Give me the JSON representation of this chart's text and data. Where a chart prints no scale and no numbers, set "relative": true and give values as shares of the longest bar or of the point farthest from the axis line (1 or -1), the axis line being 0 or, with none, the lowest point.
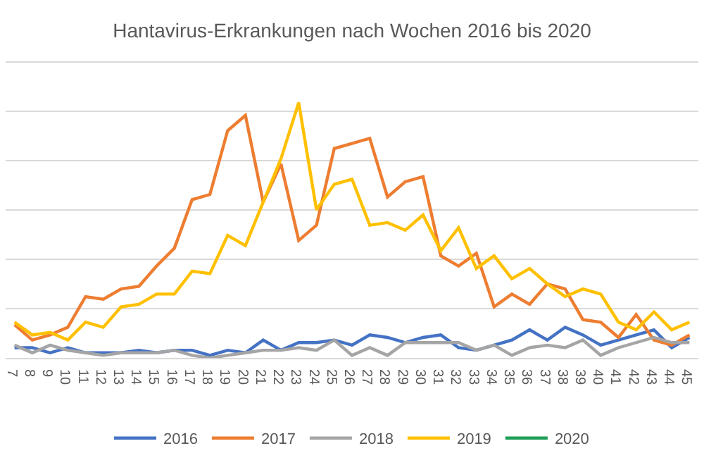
{
  "chart_data": {
    "type": "line",
    "title": "Hantavirus-Erkrankungen nach Wochen 2016 bis 2020",
    "relative": true,
    "grid": "y",
    "legend": "bottom",
    "marker": "none",
    "line_style": "solid",
    "categories": [
      "7",
      "8",
      "9",
      "10",
      "11",
      "12",
      "13",
      "14",
      "15",
      "16",
      "17",
      "18",
      "19",
      "20",
      "21",
      "22",
      "23",
      "24",
      "25",
      "26",
      "27",
      "28",
      "29",
      "30",
      "31",
      "32",
      "33",
      "34",
      "35",
      "36",
      "37",
      "38",
      "39",
      "40",
      "41",
      "42",
      "43",
      "44",
      "45"
    ],
    "series": [
      {
        "name": "2016",
        "color": "#4472c4",
        "values": [
          0.04,
          0.04,
          0.02,
          0.04,
          0.02,
          0.02,
          0.02,
          0.03,
          0.02,
          0.03,
          0.03,
          0.01,
          0.03,
          0.02,
          0.07,
          0.03,
          0.06,
          0.06,
          0.07,
          0.05,
          0.09,
          0.08,
          0.06,
          0.08,
          0.09,
          0.04,
          0.03,
          0.05,
          0.07,
          0.11,
          0.07,
          0.12,
          0.09,
          0.05,
          0.07,
          0.09,
          0.11,
          0.04,
          0.08
        ]
      },
      {
        "name": "2017",
        "color": "#ed7d31",
        "values": [
          0.13,
          0.07,
          0.09,
          0.12,
          0.24,
          0.23,
          0.27,
          0.28,
          0.36,
          0.43,
          0.62,
          0.64,
          0.89,
          0.95,
          0.61,
          0.76,
          0.46,
          0.52,
          0.82,
          0.84,
          0.86,
          0.63,
          0.69,
          0.71,
          0.4,
          0.36,
          0.41,
          0.2,
          0.25,
          0.21,
          0.29,
          0.27,
          0.15,
          0.14,
          0.08,
          0.17,
          0.07,
          0.05,
          0.09
        ]
      },
      {
        "name": "2018",
        "color": "#a5a5a5",
        "values": [
          0.05,
          0.02,
          0.05,
          0.03,
          0.02,
          0.01,
          0.02,
          0.02,
          0.02,
          0.03,
          0.01,
          0,
          0.01,
          0.02,
          0.03,
          0.03,
          0.04,
          0.03,
          0.07,
          0.01,
          0.04,
          0.01,
          0.06,
          0.06,
          0.06,
          0.06,
          0.03,
          0.05,
          0.01,
          0.04,
          0.05,
          0.04,
          0.07,
          0.01,
          0.04,
          0.06,
          0.08,
          0.06,
          0.06
        ]
      },
      {
        "name": "2019",
        "color": "#ffc000",
        "values": [
          0.14,
          0.09,
          0.1,
          0.07,
          0.14,
          0.12,
          0.2,
          0.21,
          0.25,
          0.25,
          0.34,
          0.33,
          0.48,
          0.44,
          0.61,
          0.78,
          1,
          0.58,
          0.68,
          0.7,
          0.52,
          0.53,
          0.5,
          0.56,
          0.42,
          0.51,
          0.35,
          0.4,
          0.31,
          0.35,
          0.29,
          0.24,
          0.27,
          0.25,
          0.14,
          0.11,
          0.18,
          0.11,
          0.14
        ]
      },
      {
        "name": "2020",
        "color": "#1e9e56",
        "values": [
          null,
          null,
          null,
          null,
          null,
          null,
          null,
          null,
          null,
          null,
          null,
          null,
          null,
          null,
          null,
          null,
          null,
          null,
          null,
          null,
          null,
          null,
          null,
          null,
          null,
          null,
          null,
          null,
          null,
          null,
          null,
          null,
          null,
          null,
          null,
          null,
          null,
          null,
          null
        ]
      }
    ]
  }
}
